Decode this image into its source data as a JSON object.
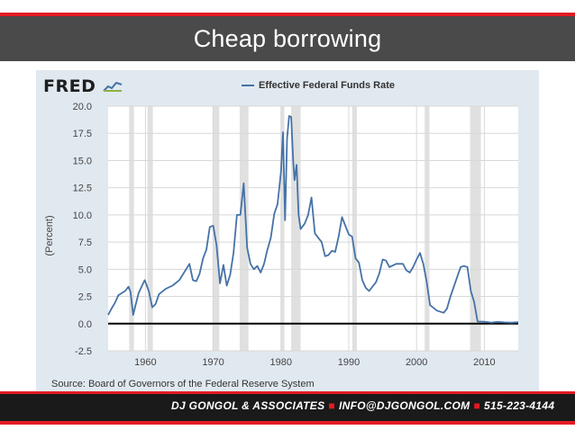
{
  "slide": {
    "title": "Cheap borrowing"
  },
  "footer": {
    "company": "DJ GONGOL & ASSOCIATES",
    "email": "INFO@DJGONGOL.COM",
    "phone": "515-223-4144"
  },
  "colors": {
    "accent_red": "#e21b23",
    "series_blue": "#4572a7",
    "recession_gray": "#e0e0e0"
  },
  "chart_data": {
    "type": "line",
    "logo": "FRED",
    "title": "",
    "legend": [
      "Effective Federal Funds Rate"
    ],
    "ylabel": "(Percent)",
    "xlabel": "",
    "ylim": [
      -2.5,
      20
    ],
    "xlim": [
      1954.5,
      2015
    ],
    "yticks": [
      -2.5,
      0.0,
      2.5,
      5.0,
      7.5,
      10.0,
      12.5,
      15.0,
      17.5,
      20.0
    ],
    "ytick_labels": [
      "-2.5",
      "0.0",
      "2.5",
      "5.0",
      "7.5",
      "10.0",
      "12.5",
      "15.0",
      "17.5",
      "20.0"
    ],
    "xticks": [
      1960,
      1970,
      1980,
      1990,
      2000,
      2010
    ],
    "xtick_labels": [
      "1960",
      "1970",
      "1980",
      "1990",
      "2000",
      "2010"
    ],
    "grid": true,
    "zero_line": 0,
    "source": "Source: Board of Governors of the Federal Reserve System",
    "recessions": [
      [
        1957.6,
        1958.3
      ],
      [
        1960.3,
        1961.1
      ],
      [
        1969.9,
        1970.9
      ],
      [
        1973.9,
        1975.2
      ],
      [
        1980.0,
        1980.5
      ],
      [
        1981.5,
        1982.9
      ],
      [
        1990.5,
        1991.2
      ],
      [
        2001.2,
        2001.9
      ],
      [
        2007.9,
        2009.5
      ]
    ],
    "series": [
      {
        "name": "Effective Federal Funds Rate",
        "x": [
          1954.5,
          1955.0,
          1955.5,
          1956.0,
          1956.5,
          1957.0,
          1957.5,
          1957.8,
          1958.2,
          1958.5,
          1959.0,
          1959.5,
          1959.9,
          1960.5,
          1961.0,
          1961.5,
          1962.0,
          1963.0,
          1964.0,
          1965.0,
          1966.0,
          1966.5,
          1967.0,
          1967.5,
          1968.0,
          1968.5,
          1969.0,
          1969.5,
          1970.0,
          1970.5,
          1971.0,
          1971.5,
          1972.0,
          1972.5,
          1973.0,
          1973.5,
          1974.0,
          1974.5,
          1975.0,
          1975.5,
          1976.0,
          1976.5,
          1977.0,
          1977.5,
          1978.0,
          1978.5,
          1979.0,
          1979.5,
          1980.0,
          1980.3,
          1980.6,
          1980.9,
          1981.2,
          1981.5,
          1981.8,
          1982.0,
          1982.3,
          1982.6,
          1982.9,
          1983.5,
          1984.0,
          1984.5,
          1985.0,
          1985.5,
          1986.0,
          1986.5,
          1987.0,
          1987.5,
          1988.0,
          1988.5,
          1989.0,
          1989.5,
          1990.0,
          1990.5,
          1991.0,
          1991.5,
          1992.0,
          1992.5,
          1993.0,
          1994.0,
          1994.5,
          1995.0,
          1995.5,
          1996.0,
          1997.0,
          1998.0,
          1998.5,
          1999.0,
          1999.5,
          2000.0,
          2000.5,
          2001.0,
          2001.5,
          2002.0,
          2003.0,
          2004.0,
          2004.5,
          2005.0,
          2006.0,
          2006.5,
          2007.0,
          2007.5,
          2008.0,
          2008.5,
          2009.0,
          2010.0,
          2011.0,
          2012.0,
          2013.0,
          2014.0,
          2015.0
        ],
        "values": [
          0.8,
          1.4,
          1.9,
          2.6,
          2.8,
          3.0,
          3.4,
          2.9,
          0.8,
          1.6,
          2.8,
          3.5,
          4.0,
          3.0,
          1.5,
          1.8,
          2.7,
          3.2,
          3.5,
          4.0,
          5.0,
          5.5,
          4.0,
          3.9,
          4.6,
          6.0,
          6.8,
          8.9,
          9.0,
          7.2,
          3.7,
          5.4,
          3.5,
          4.5,
          6.5,
          10.0,
          10.0,
          12.9,
          7.0,
          5.5,
          5.0,
          5.3,
          4.7,
          5.5,
          6.8,
          7.9,
          10.1,
          11.0,
          14.0,
          17.6,
          9.5,
          17.0,
          19.1,
          19.0,
          15.0,
          13.2,
          14.6,
          10.0,
          8.7,
          9.2,
          10.0,
          11.6,
          8.3,
          7.9,
          7.5,
          6.2,
          6.3,
          6.7,
          6.6,
          8.0,
          9.8,
          9.0,
          8.2,
          8.0,
          6.0,
          5.6,
          4.0,
          3.3,
          3.0,
          3.8,
          4.6,
          5.9,
          5.8,
          5.2,
          5.5,
          5.5,
          4.9,
          4.7,
          5.2,
          5.9,
          6.5,
          5.5,
          3.8,
          1.7,
          1.2,
          1.0,
          1.4,
          2.5,
          4.3,
          5.2,
          5.3,
          5.2,
          3.0,
          2.0,
          0.2,
          0.18,
          0.1,
          0.16,
          0.11,
          0.09,
          0.13
        ]
      }
    ]
  }
}
